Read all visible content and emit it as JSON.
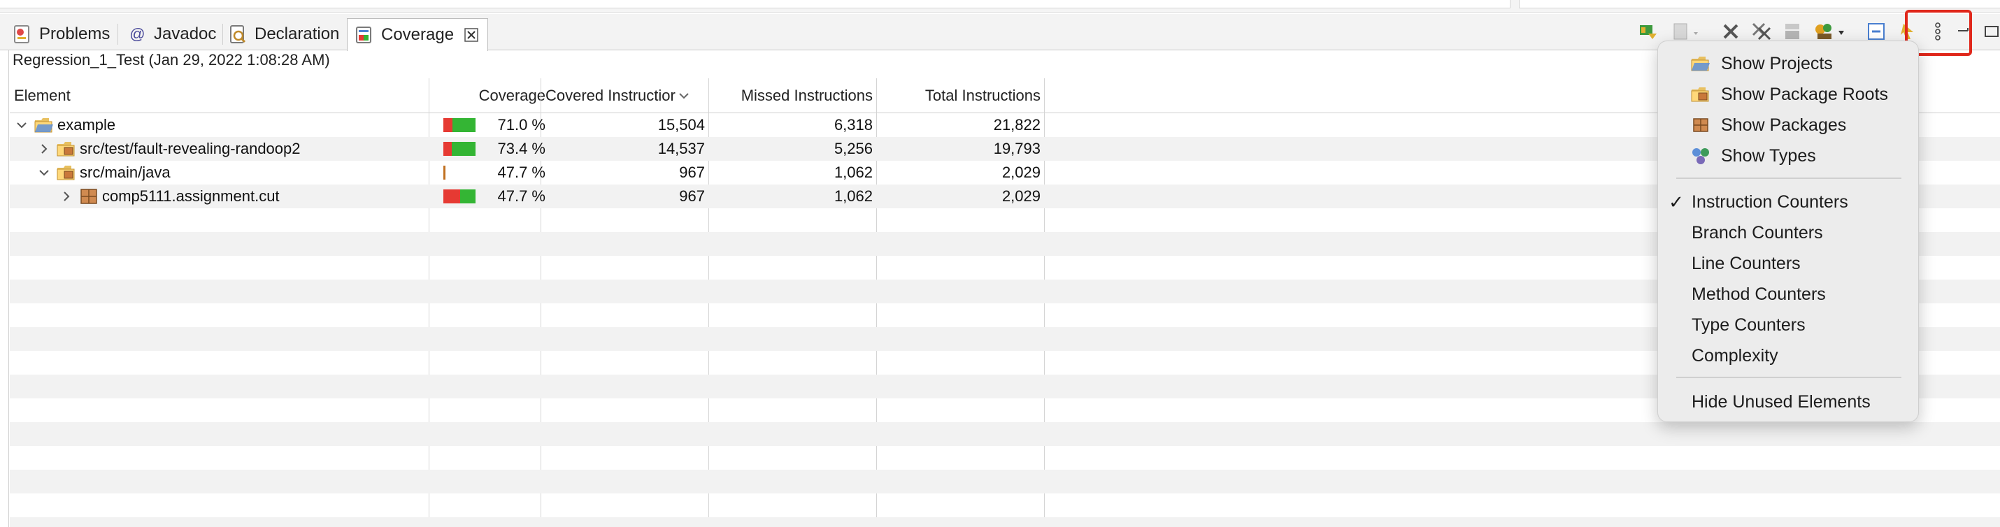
{
  "tabs": [
    {
      "label": "Problems",
      "icon": "problems-icon"
    },
    {
      "label": "Javadoc",
      "icon": "javadoc-at-icon"
    },
    {
      "label": "Declaration",
      "icon": "declaration-icon"
    },
    {
      "label": "Coverage",
      "icon": "coverage-icon",
      "active": true
    }
  ],
  "javadoc_symbol": "@",
  "session": "Regression_1_Test (Jan 29, 2022 1:08:28 AM)",
  "columns": {
    "element": "Element",
    "coverage": "Coverage",
    "covered": "Covered Instructior",
    "missed": "Missed Instructions",
    "total": "Total Instructions"
  },
  "rows": [
    {
      "name": "example",
      "icon": "project-folder-icon",
      "expanded": true,
      "coverage": "71.0 %",
      "coverage_value": 0.71,
      "covered": "15,504",
      "missed": "6,318",
      "total": "21,822"
    },
    {
      "name": "src/test/fault-revealing-randoop2",
      "icon": "package-root-icon",
      "expanded": false,
      "coverage": "73.4 %",
      "coverage_value": 0.734,
      "covered": "14,537",
      "missed": "5,256",
      "total": "19,793"
    },
    {
      "name": "src/main/java",
      "icon": "package-root-icon",
      "expanded": true,
      "coverage": "47.7 %",
      "coverage_value": 0.477,
      "covered": "967",
      "missed": "1,062",
      "total": "2,029"
    },
    {
      "name": "comp5111.assignment.cut",
      "icon": "package-icon",
      "expanded": false,
      "coverage": "47.7 %",
      "coverage_value": 0.477,
      "covered": "967",
      "missed": "1,062",
      "total": "2,029"
    }
  ],
  "menu": {
    "group1": [
      {
        "label": "Show Projects",
        "icon": "project-folder-icon"
      },
      {
        "label": "Show Package Roots",
        "icon": "package-root-icon"
      },
      {
        "label": "Show Packages",
        "icon": "package-icon"
      },
      {
        "label": "Show Types",
        "icon": "types-icon"
      }
    ],
    "group2": [
      {
        "label": "Instruction Counters",
        "checked": true
      },
      {
        "label": "Branch Counters",
        "checked": false
      },
      {
        "label": "Line Counters",
        "checked": false
      },
      {
        "label": "Method Counters",
        "checked": false
      },
      {
        "label": "Type Counters",
        "checked": false
      },
      {
        "label": "Complexity",
        "checked": false
      }
    ],
    "group3": [
      {
        "label": "Hide Unused Elements"
      }
    ],
    "check_mark": "✓"
  },
  "colors": {
    "missed": "#e63a33",
    "covered": "#34b534",
    "highlight": "#e0271b"
  }
}
